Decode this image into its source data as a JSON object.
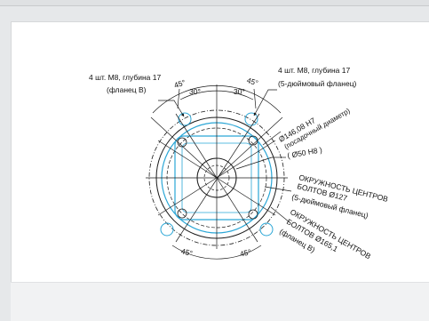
{
  "diagram": {
    "labels": {
      "left_holes_line1": "4 шт. M8, глубина 17",
      "left_holes_line2": "(фланец B)",
      "right_holes_line1": "4 шт. M8, глубина 17",
      "right_holes_line2": "(5-дюймовый фланец)",
      "angle_45_top_left": "45°",
      "angle_30_left": "30°",
      "angle_30_right": "30°",
      "angle_45_top_right": "45°",
      "angle_45_bottom_left": "45°",
      "angle_45_bottom_right": "45°",
      "diameter_h7_line1": "Ø146,08 H7",
      "diameter_h7_line2": "(посадочный диаметр)",
      "diameter_h8": "( Ø50 H8 )",
      "bolt_circle_127_line1": "ОКРУЖНОСТЬ ЦЕНТРОВ",
      "bolt_circle_127_line2": "БОЛТОВ Ø127",
      "bolt_circle_127_line3": "(5-дюймовый фланец)",
      "bolt_circle_165_line1": "ОКРУЖНОСТЬ ЦЕНТРОВ",
      "bolt_circle_165_line2": "БОЛТОВ Ø165,1",
      "bolt_circle_165_line3": "(фланец B)"
    },
    "colors": {
      "line": "#1a1a1a",
      "accent_blue": "#2aa6d6",
      "background": "#ffffff"
    }
  }
}
